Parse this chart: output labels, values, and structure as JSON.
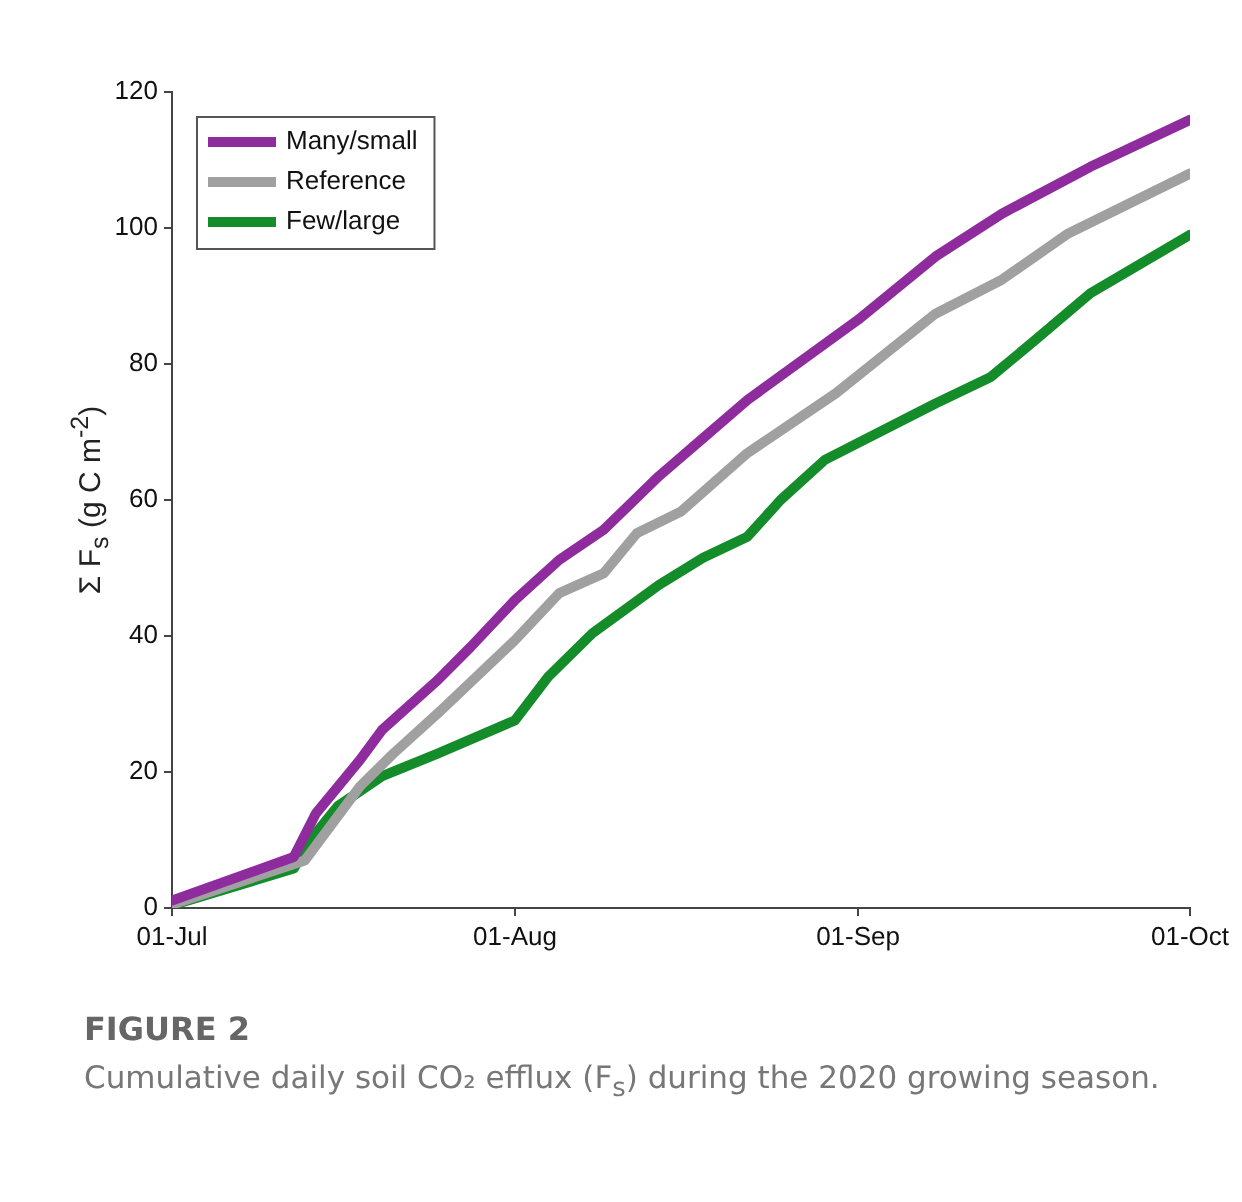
{
  "chart_data": {
    "type": "line",
    "title": "FIGURE 2",
    "annotations": [
      "Cumulative daily soil CO₂ efflux (F$_{s}$) during the 2020 growing season."
    ],
    "ylabel": "Σ F$_{s}$ (g C m$^{-2}$)",
    "xlim": [
      "2020-07-01",
      "2020-10-01"
    ],
    "xticks": [
      {
        "value": "2020-07-01",
        "label": "01-Jul"
      },
      {
        "value": "2020-08-01",
        "label": "01-Aug"
      },
      {
        "value": "2020-09-01",
        "label": "01-Sep"
      },
      {
        "value": "2020-10-01",
        "label": "01-Oct"
      }
    ],
    "ylim": [
      0,
      120
    ],
    "yticks": [
      0,
      20,
      40,
      60,
      80,
      100,
      120
    ],
    "grid": false,
    "legend": "top left",
    "marker": "none",
    "line_style": "solid",
    "series": [
      {
        "name": "Many/small",
        "color": "#8e2c9e",
        "x": [
          "2020-07-01",
          "2020-07-12",
          "2020-07-14",
          "2020-07-18",
          "2020-07-20",
          "2020-07-25",
          "2020-07-28",
          "2020-08-01",
          "2020-08-05",
          "2020-08-09",
          "2020-08-14",
          "2020-08-18",
          "2020-08-22",
          "2020-09-01",
          "2020-09-08",
          "2020-09-14",
          "2020-09-22",
          "2020-10-01"
        ],
        "values": [
          1.1,
          7.5,
          13.9,
          21.8,
          26.2,
          33.5,
          38.4,
          45.3,
          51.2,
          55.6,
          63.5,
          69.1,
          74.7,
          86.5,
          95.8,
          102.1,
          109,
          115.9
        ]
      },
      {
        "name": "Reference",
        "color": "#a0a0a0",
        "x": [
          "2020-07-01",
          "2020-07-13",
          "2020-07-18",
          "2020-07-21",
          "2020-07-25",
          "2020-08-01",
          "2020-08-05",
          "2020-08-09",
          "2020-08-12",
          "2020-08-16",
          "2020-08-22",
          "2020-08-30",
          "2020-09-08",
          "2020-09-14",
          "2020-09-20",
          "2020-10-01"
        ],
        "values": [
          0.5,
          7,
          17.9,
          22.7,
          28.6,
          39.4,
          46.3,
          49.2,
          55.1,
          58.3,
          66.9,
          75.7,
          87.4,
          92.4,
          99.2,
          108
        ]
      },
      {
        "name": "Few/large",
        "color": "#148c2a",
        "x": [
          "2020-07-01",
          "2020-07-12",
          "2020-07-14",
          "2020-07-16",
          "2020-07-20",
          "2020-07-25",
          "2020-08-01",
          "2020-08-04",
          "2020-08-08",
          "2020-08-14",
          "2020-08-18",
          "2020-08-22",
          "2020-08-25",
          "2020-08-29",
          "2020-09-08",
          "2020-09-13",
          "2020-09-17",
          "2020-09-22",
          "2020-10-01"
        ],
        "values": [
          0.4,
          5.8,
          11,
          15,
          19.4,
          22.7,
          27.6,
          34,
          40.4,
          47.5,
          51.5,
          54.6,
          60,
          65.9,
          74.2,
          78.1,
          83.5,
          90.4,
          99
        ]
      }
    ]
  }
}
